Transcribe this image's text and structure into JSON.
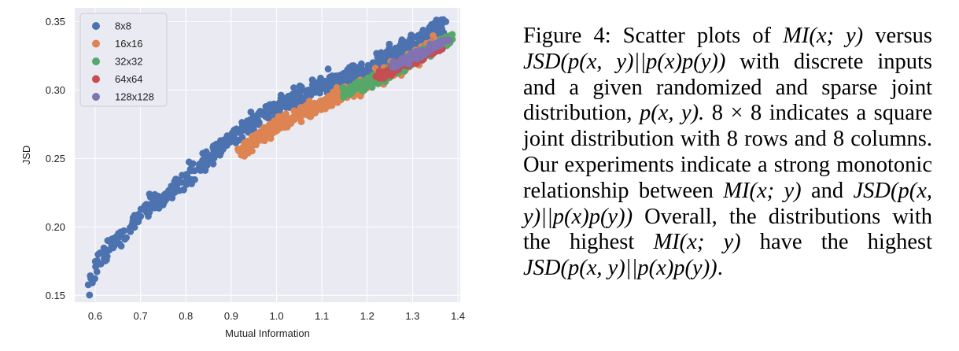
{
  "chart_data": {
    "type": "scatter",
    "xlabel": "Mutual Information",
    "ylabel": "JSD",
    "xlim": [
      0.555,
      1.405
    ],
    "ylim": [
      0.145,
      0.36
    ],
    "x_ticks": [
      "0.6",
      "0.7",
      "0.8",
      "0.9",
      "1.0",
      "1.1",
      "1.2",
      "1.3",
      "1.4"
    ],
    "y_ticks": [
      "0.15",
      "0.20",
      "0.25",
      "0.30",
      "0.35"
    ],
    "grid": true,
    "legend_placement": "top-left",
    "series": [
      {
        "name": "8x8",
        "color": "#4c72b0",
        "x_range": [
          0.58,
          1.37
        ],
        "trend": [
          [
            0.58,
            0.155
          ],
          [
            0.6,
            0.174
          ],
          [
            0.7,
            0.208
          ],
          [
            0.8,
            0.235
          ],
          [
            0.9,
            0.265
          ],
          [
            1.0,
            0.289
          ],
          [
            1.1,
            0.304
          ],
          [
            1.2,
            0.315
          ],
          [
            1.3,
            0.335
          ],
          [
            1.37,
            0.348
          ]
        ]
      },
      {
        "name": "16x16",
        "color": "#dd8452",
        "x_range": [
          0.92,
          1.36
        ],
        "trend": [
          [
            0.92,
            0.254
          ],
          [
            1.0,
            0.274
          ],
          [
            1.1,
            0.29
          ],
          [
            1.2,
            0.305
          ],
          [
            1.3,
            0.322
          ],
          [
            1.36,
            0.335
          ]
        ]
      },
      {
        "name": "32x32",
        "color": "#55a868",
        "x_range": [
          1.15,
          1.39
        ],
        "trend": [
          [
            1.15,
            0.298
          ],
          [
            1.2,
            0.305
          ],
          [
            1.3,
            0.322
          ],
          [
            1.39,
            0.338
          ]
        ]
      },
      {
        "name": "64x64",
        "color": "#c44e52",
        "x_range": [
          1.23,
          1.36
        ],
        "trend": [
          [
            1.23,
            0.31
          ],
          [
            1.3,
            0.321
          ],
          [
            1.36,
            0.331
          ]
        ]
      },
      {
        "name": "128x128",
        "color": "#8172b3",
        "x_range": [
          1.26,
          1.37
        ],
        "trend": [
          [
            1.26,
            0.318
          ],
          [
            1.3,
            0.324
          ],
          [
            1.37,
            0.336
          ]
        ]
      }
    ]
  },
  "caption": {
    "figure_label": "Figure 4:",
    "intro": "Scatter plots of",
    "mi": "MI(x; y)",
    "versus": "versus",
    "jsd": "JSD(p(x, y)||p(x)p(y))",
    "body1": "with discrete inputs and a given randomized and sparse joint distribution,",
    "pxy": "p(x, y).",
    "dim": "8 × 8",
    "body2": "indicates a square joint distribution with",
    "rows_n": "8",
    "rows": "rows and",
    "cols_n": "8",
    "cols": "columns. Our experiments indicate a strong monotonic relationship between",
    "and": "and",
    "body3": "Overall, the distributions with the highest",
    "have": "have the highest",
    "end": "."
  }
}
